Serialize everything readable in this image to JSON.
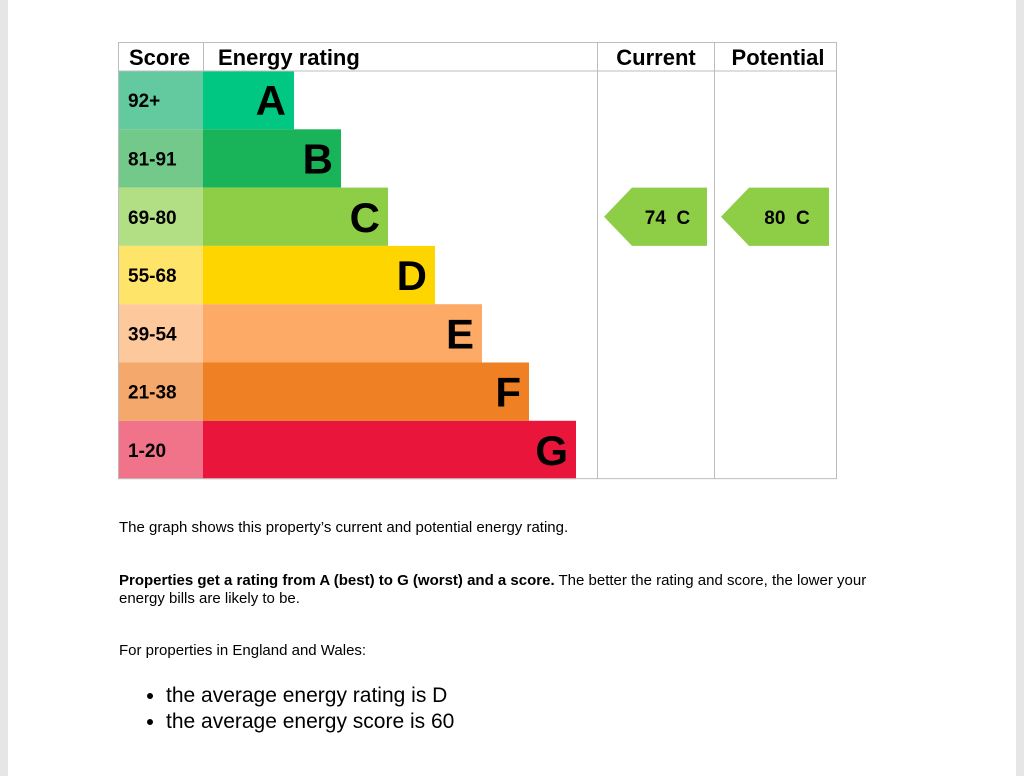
{
  "chart_data": {
    "type": "table",
    "headers": {
      "score": "Score",
      "rating": "Energy rating",
      "current": "Current",
      "potential": "Potential"
    },
    "bands": [
      {
        "letter": "A",
        "range": "92+",
        "color": "#00c781",
        "score_color": "#63c99e"
      },
      {
        "letter": "B",
        "range": "81-91",
        "color": "#19b459",
        "score_color": "#73c98a"
      },
      {
        "letter": "C",
        "range": "69-80",
        "color": "#8dce46",
        "score_color": "#b3df84"
      },
      {
        "letter": "D",
        "range": "55-68",
        "color": "#ffd500",
        "score_color": "#ffe46a"
      },
      {
        "letter": "E",
        "range": "39-54",
        "color": "#fcaa65",
        "score_color": "#fdc89b"
      },
      {
        "letter": "F",
        "range": "21-38",
        "color": "#ef8023",
        "score_color": "#f4a86b"
      },
      {
        "letter": "G",
        "range": "1-20",
        "color": "#e9153b",
        "score_color": "#f17389"
      }
    ],
    "current": {
      "score": 74,
      "letter": "C",
      "label": "74  C"
    },
    "potential": {
      "score": 80,
      "letter": "C",
      "label": "80  C"
    }
  },
  "text": {
    "intro": "The graph shows this property’s current and potential energy rating.",
    "rating_bold": "Properties get a rating from A (best) to G (worst) and a score.",
    "rating_rest": " The better the rating and score, the lower your energy bills are likely to be.",
    "region": "For properties in England and Wales:",
    "bullets": [
      "the average energy rating is D",
      "the average energy score is 60"
    ]
  }
}
